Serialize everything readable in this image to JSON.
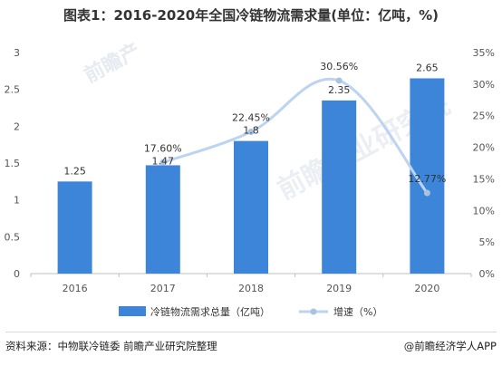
{
  "title": "图表1：2016-2020年全国冷链物流需求量(单位：亿吨，%)",
  "watermarks": [
    "前瞻产",
    "前瞻产业研究院"
  ],
  "footer": {
    "source": "资料来源：中物联冷链委 前瞻产业研究院整理",
    "brand": "@前瞻经济学人APP"
  },
  "colors": {
    "bar": "#3d85d8",
    "line": "#bcd4f0",
    "marker": "#a9c3e3"
  },
  "chart_data": {
    "type": "bar",
    "categories": [
      "2016",
      "2017",
      "2018",
      "2019",
      "2020"
    ],
    "series": [
      {
        "name": "冷链物流需求总量（亿吨）",
        "type": "bar",
        "axis": "left",
        "values": [
          1.25,
          1.47,
          1.8,
          2.35,
          2.65
        ],
        "labels": [
          "1.25",
          "1.47",
          "1.8",
          "2.35",
          "2.65"
        ]
      },
      {
        "name": "增速（%）",
        "type": "line",
        "axis": "right",
        "values": [
          null,
          17.6,
          22.45,
          30.56,
          12.77
        ],
        "labels": [
          "",
          "17.60%",
          "22.45%",
          "30.56%",
          "12.77%"
        ]
      }
    ],
    "left_axis": {
      "range": [
        0,
        3
      ],
      "ticks": [
        "0",
        "0.5",
        "1",
        "1.5",
        "2",
        "2.5",
        "3"
      ]
    },
    "right_axis": {
      "range": [
        0,
        35
      ],
      "ticks": [
        "0%",
        "5%",
        "10%",
        "15%",
        "20%",
        "25%",
        "30%",
        "35%"
      ]
    },
    "grid": false,
    "legend": "bottom"
  }
}
